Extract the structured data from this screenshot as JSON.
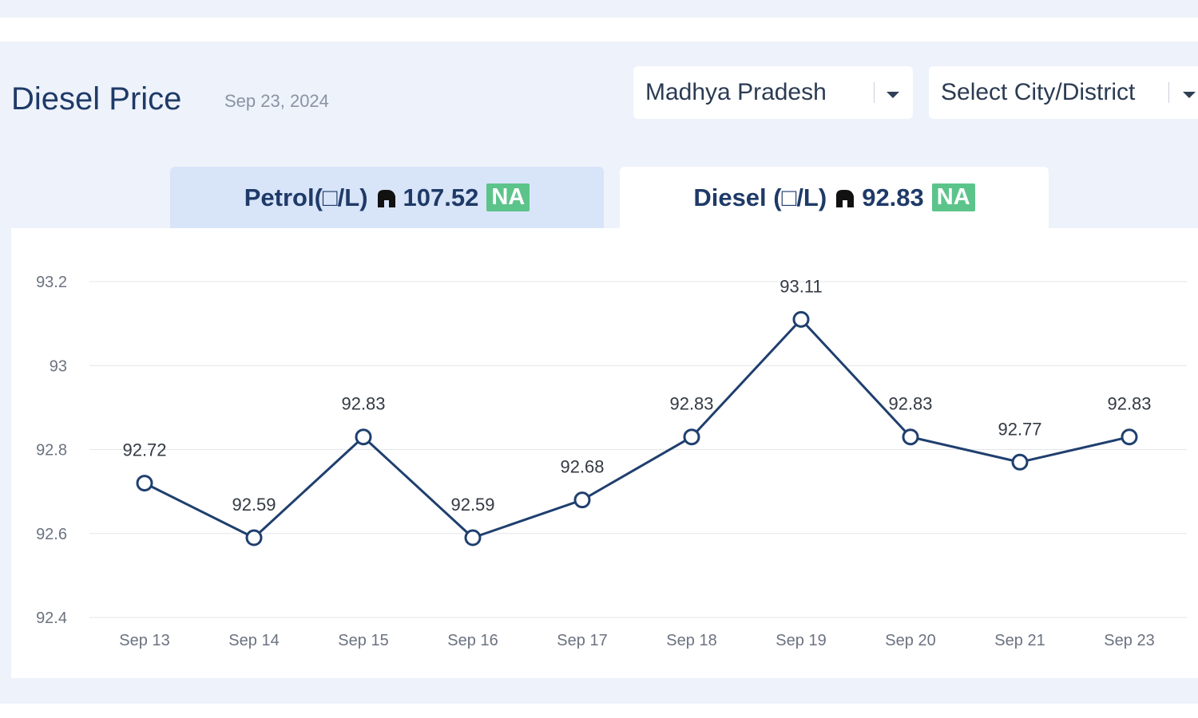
{
  "header": {
    "title": "Diesel Price",
    "date": "Sep 23, 2024"
  },
  "filters": {
    "state_selected": "Madhya Pradesh",
    "city_selected": "Select City/District"
  },
  "tabs": [
    {
      "label": "Petrol(□/L)",
      "value": "107.52",
      "badge": "NA",
      "active": false
    },
    {
      "label": "Diesel (□/L)",
      "value": "92.83",
      "badge": "NA",
      "active": true
    }
  ],
  "icons": {
    "tab_icon": "fuel-pump-icon",
    "dropdown_icon": "caret-down-icon"
  },
  "colors": {
    "line": "#1f3f6e",
    "badge": "#5cc48a",
    "title": "#1e3a68",
    "panel_bg": "#eef2fa",
    "active_tab": "#ffffff",
    "inactive_tab": "#d8e4f8"
  },
  "chart_data": {
    "type": "line",
    "title": "",
    "xlabel": "",
    "ylabel": "",
    "categories": [
      "Sep 13",
      "Sep 14",
      "Sep 15",
      "Sep 16",
      "Sep 17",
      "Sep 18",
      "Sep 19",
      "Sep 20",
      "Sep 21",
      "Sep 23"
    ],
    "series": [
      {
        "values": [
          92.72,
          92.59,
          92.83,
          92.59,
          92.68,
          92.83,
          93.11,
          92.83,
          92.77,
          92.83
        ]
      }
    ],
    "data_labels": [
      "92.72",
      "92.59",
      "92.83",
      "92.59",
      "92.68",
      "92.83",
      "93.11",
      "92.83",
      "92.77",
      "92.83"
    ],
    "yticks": [
      "92.4",
      "92.6",
      "92.8",
      "93",
      "93.2"
    ],
    "ylim": [
      92.4,
      93.2
    ],
    "grid": true,
    "legend": "none"
  }
}
